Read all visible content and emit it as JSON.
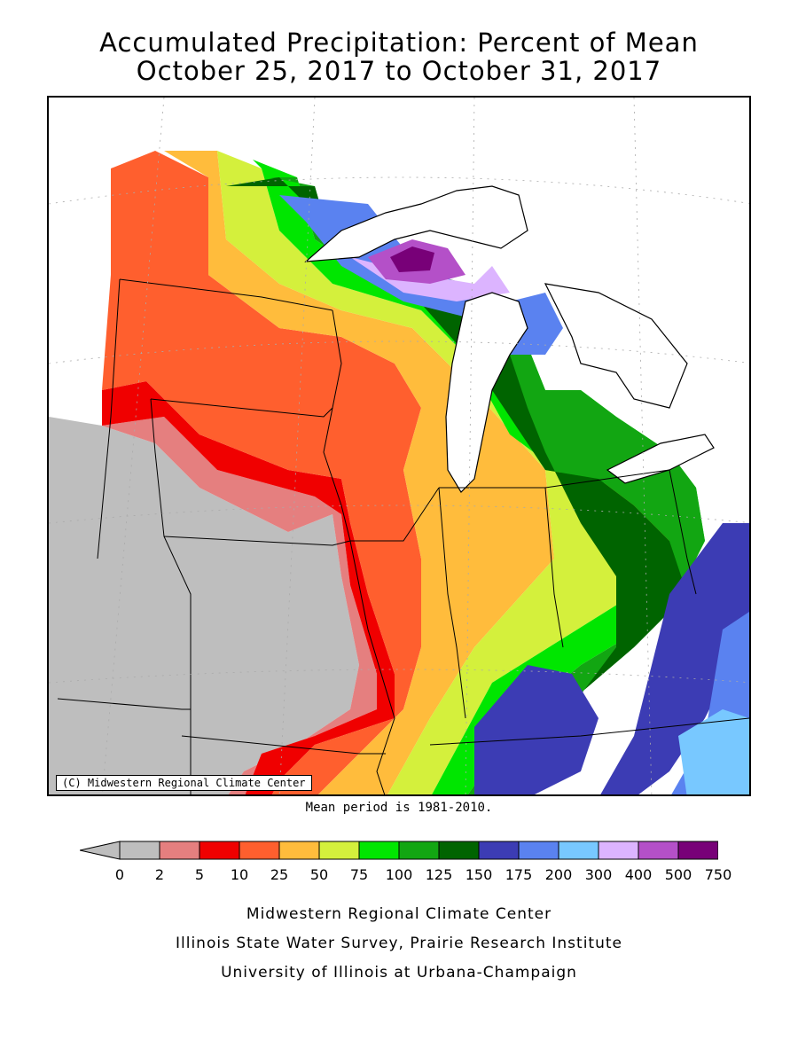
{
  "title": {
    "line1": "Accumulated Precipitation: Percent of Mean",
    "line2": "October 25, 2017 to October 31, 2017"
  },
  "map": {
    "credit": "(C) Midwestern Regional Climate Center",
    "mean_period_note": "Mean period is 1981-2010."
  },
  "legend": {
    "bins": [
      {
        "low": "0",
        "color": "#bebebe"
      },
      {
        "low": "2",
        "color": "#e57f7f"
      },
      {
        "low": "5",
        "color": "#f00000"
      },
      {
        "low": "10",
        "color": "#ff5f2e"
      },
      {
        "low": "25",
        "color": "#ffbc3c"
      },
      {
        "low": "50",
        "color": "#d4f03c"
      },
      {
        "low": "75",
        "color": "#00e600"
      },
      {
        "low": "100",
        "color": "#12a612"
      },
      {
        "low": "125",
        "color": "#006400"
      },
      {
        "low": "150",
        "color": "#3c3cb4"
      },
      {
        "low": "175",
        "color": "#5a82f0"
      },
      {
        "low": "200",
        "color": "#78c8ff"
      },
      {
        "low": "300",
        "color": "#dcb4ff"
      },
      {
        "low": "400",
        "color": "#b450c8"
      },
      {
        "low": "500",
        "color": "#780078"
      }
    ],
    "labels": [
      "0",
      "2",
      "5",
      "10",
      "25",
      "50",
      "75",
      "100",
      "125",
      "150",
      "175",
      "200",
      "300",
      "400",
      "500",
      "750"
    ]
  },
  "footer": {
    "line1": "Midwestern Regional Climate Center",
    "line2": "Illinois State Water Survey, Prairie Research Institute",
    "line3": "University of Illinois at Urbana-Champaign"
  }
}
